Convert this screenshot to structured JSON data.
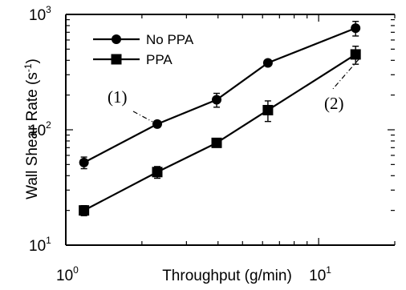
{
  "chart_data": {
    "type": "scatter",
    "x_scale": "log",
    "y_scale": "log",
    "xlim": [
      1,
      20
    ],
    "ylim": [
      10,
      1000
    ],
    "xlabel": "Throughput (g/min)",
    "ylabel_main": "Wall Shear Rate (s",
    "ylabel_sup": "-1",
    "ylabel_close": ")",
    "x_ticks": [
      {
        "base": "10",
        "exp": "0",
        "value": 1
      },
      {
        "base": "10",
        "exp": "1",
        "value": 10
      }
    ],
    "y_ticks": [
      {
        "base": "10",
        "exp": "1",
        "value": 10
      },
      {
        "base": "10",
        "exp": "2",
        "value": 100
      },
      {
        "base": "10",
        "exp": "3",
        "value": 1000
      }
    ],
    "grid": false,
    "legend_position": "top-left",
    "series": [
      {
        "name": "No PPA",
        "marker": "circle",
        "points": [
          {
            "x": 1.18,
            "y": 52,
            "err": 6
          },
          {
            "x": 2.3,
            "y": 112,
            "err": 7
          },
          {
            "x": 3.95,
            "y": 182,
            "err": 25
          },
          {
            "x": 6.3,
            "y": 380,
            "err": 18
          },
          {
            "x": 14.0,
            "y": 760,
            "err": 110
          }
        ]
      },
      {
        "name": "PPA",
        "marker": "square",
        "points": [
          {
            "x": 1.18,
            "y": 20,
            "err": 2
          },
          {
            "x": 2.3,
            "y": 43,
            "err": 5
          },
          {
            "x": 3.95,
            "y": 77,
            "err": 6
          },
          {
            "x": 6.3,
            "y": 148,
            "err": 30
          },
          {
            "x": 14.0,
            "y": 450,
            "err": 80
          }
        ]
      }
    ],
    "annotations": [
      {
        "text": "(1)",
        "target_series": 0,
        "target_point": 1
      },
      {
        "text": "(2)",
        "target_series": 1,
        "target_point": 4
      }
    ]
  }
}
